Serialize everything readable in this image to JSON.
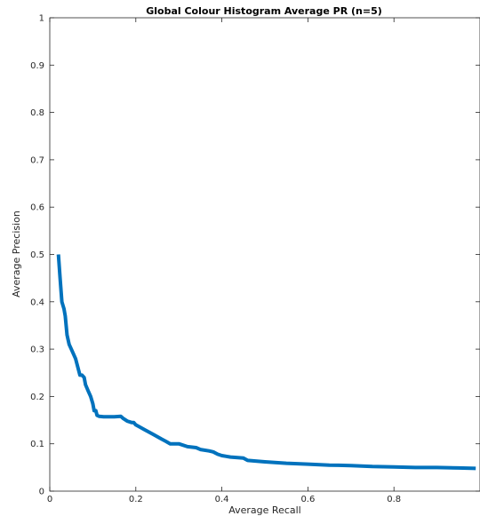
{
  "chart_data": {
    "type": "line",
    "title": "Global Colour Histogram Average PR (n=5)",
    "xlabel": "Average Recall",
    "ylabel": "Average Precision",
    "xlim": [
      0,
      1
    ],
    "ylim": [
      0,
      1
    ],
    "grid": false,
    "xticks": [
      0,
      0.2,
      0.4,
      0.6,
      0.8
    ],
    "xtick_labels": [
      "0",
      "0.2",
      "0.4",
      "0.6",
      "0.8"
    ],
    "yticks": [
      0,
      0.1,
      0.2,
      0.3,
      0.4,
      0.5,
      0.6,
      0.7,
      0.8,
      0.9,
      1
    ],
    "ytick_labels": [
      "0",
      "0.1",
      "0.2",
      "0.3",
      "0.4",
      "0.5",
      "0.6",
      "0.7",
      "0.8",
      "0.9",
      "1"
    ],
    "series": [
      {
        "color": "#0072BD",
        "x": [
          0.02,
          0.024,
          0.028,
          0.033,
          0.036,
          0.04,
          0.045,
          0.05,
          0.06,
          0.07,
          0.075,
          0.08,
          0.083,
          0.09,
          0.095,
          0.1,
          0.103,
          0.107,
          0.11,
          0.115,
          0.125,
          0.13,
          0.15,
          0.165,
          0.17,
          0.18,
          0.19,
          0.195,
          0.2,
          0.21,
          0.22,
          0.24,
          0.26,
          0.27,
          0.28,
          0.3,
          0.32,
          0.34,
          0.35,
          0.37,
          0.38,
          0.39,
          0.4,
          0.42,
          0.45,
          0.46,
          0.5,
          0.55,
          0.6,
          0.65,
          0.7,
          0.75,
          0.8,
          0.85,
          0.9,
          0.95,
          0.99
        ],
        "y": [
          0.5,
          0.45,
          0.4,
          0.385,
          0.37,
          0.33,
          0.31,
          0.3,
          0.28,
          0.245,
          0.245,
          0.24,
          0.225,
          0.21,
          0.2,
          0.185,
          0.17,
          0.17,
          0.16,
          0.158,
          0.157,
          0.157,
          0.157,
          0.158,
          0.154,
          0.148,
          0.145,
          0.145,
          0.14,
          0.135,
          0.13,
          0.12,
          0.11,
          0.105,
          0.1,
          0.1,
          0.094,
          0.092,
          0.088,
          0.085,
          0.083,
          0.078,
          0.075,
          0.072,
          0.07,
          0.065,
          0.062,
          0.059,
          0.057,
          0.055,
          0.054,
          0.052,
          0.051,
          0.05,
          0.05,
          0.049,
          0.048
        ]
      }
    ]
  }
}
